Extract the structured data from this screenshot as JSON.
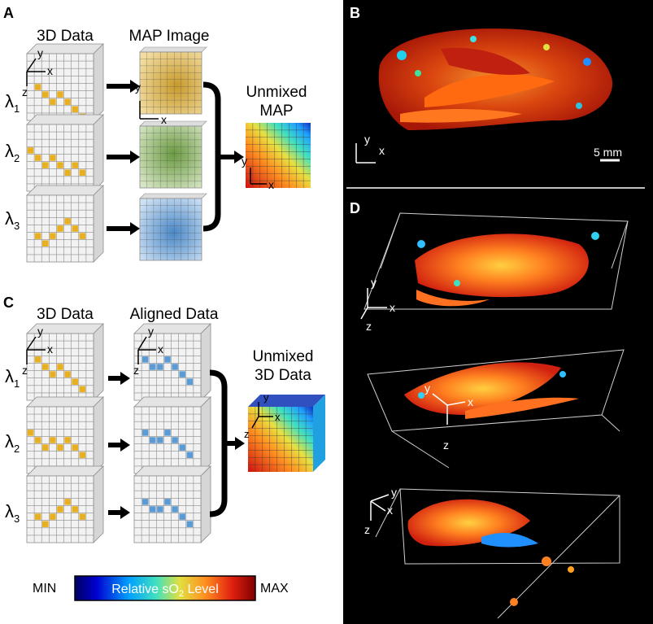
{
  "panel_a": {
    "letter": "A",
    "col_3d": "3D Data",
    "col_map": "MAP Image",
    "unmixed_line1": "Unmixed",
    "unmixed_line2": "MAP"
  },
  "panel_c": {
    "letter": "C",
    "col_3d": "3D Data",
    "col_aligned": "Aligned Data",
    "unmixed_line1": "Unmixed",
    "unmixed_line2": "3D Data"
  },
  "lambdas": [
    {
      "base": "λ",
      "sub": "1"
    },
    {
      "base": "λ",
      "sub": "2"
    },
    {
      "base": "λ",
      "sub": "3"
    }
  ],
  "axes": {
    "x": "x",
    "y": "y",
    "z": "z"
  },
  "colorbar": {
    "min": "MIN",
    "max": "MAX",
    "label_pre": "Relative sO",
    "label_sub": "2",
    "label_post": " Level"
  },
  "panel_b": {
    "letter": "B",
    "scale_label": "5 mm"
  },
  "panel_d": {
    "letter": "D"
  },
  "colors": {
    "gold": "#e8b020",
    "blue_dot": "#5b9bd5",
    "map_gold": "#d8b04a",
    "map_green": "#7fa85a",
    "map_blue": "#6ea6d8",
    "cube_face": "#f2f2f2",
    "grid_line": "#8c8c8c",
    "background_dark": "#000000"
  }
}
